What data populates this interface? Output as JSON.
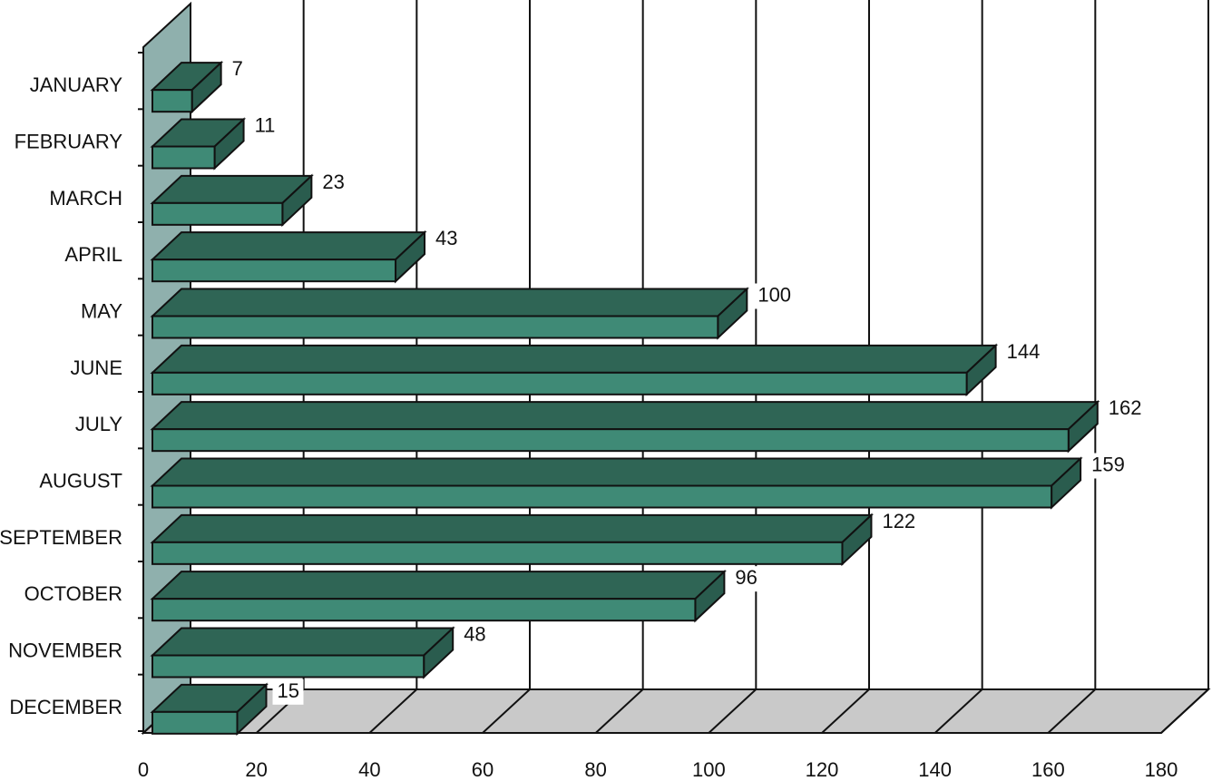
{
  "colors": {
    "bar_front": "#3f8a76",
    "bar_top": "#2f6555",
    "bar_side": "#2a5c4e",
    "wall": "#8fb0ad",
    "floor": "#c9c9c9",
    "outline": "#111111"
  },
  "chart_data": {
    "type": "bar",
    "orientation": "horizontal",
    "style": "3d",
    "categories": [
      "JANUARY",
      "FEBRUARY",
      "MARCH",
      "APRIL",
      "MAY",
      "JUNE",
      "JULY",
      "AUGUST",
      "SEPTEMBER",
      "OCTOBER",
      "NOVEMBER",
      "DECEMBER"
    ],
    "values": [
      7,
      11,
      23,
      43,
      100,
      144,
      162,
      159,
      122,
      96,
      48,
      15
    ],
    "data_labels": [
      "7",
      "11",
      "23",
      "43",
      "100",
      "144",
      "162",
      "159",
      "122",
      "96",
      "48",
      "15"
    ],
    "xlim": [
      0,
      180
    ],
    "xticks": [
      0,
      20,
      40,
      60,
      80,
      100,
      120,
      140,
      160,
      180
    ],
    "xtick_labels": [
      "0",
      "20",
      "40",
      "60",
      "80",
      "100",
      "120",
      "140",
      "160",
      "180"
    ],
    "grid": true
  }
}
